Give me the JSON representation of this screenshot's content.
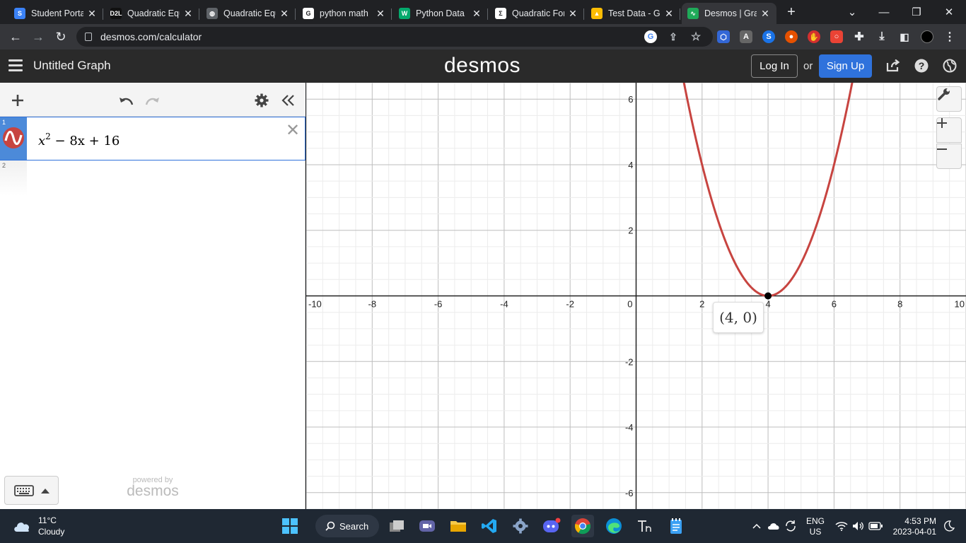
{
  "browser": {
    "tabs": [
      {
        "title": "Student Porta",
        "favicon": "student-portal-icon",
        "color": "#3b82f6",
        "glyph": "S"
      },
      {
        "title": "Quadratic Equ",
        "favicon": "d2l-icon",
        "color": "#111111",
        "glyph": "D2L"
      },
      {
        "title": "Quadratic Equ",
        "favicon": "globe-icon",
        "color": "#5f6368",
        "glyph": "◍"
      },
      {
        "title": "python math",
        "favicon": "google-icon",
        "color": "#ffffff",
        "glyph": "G"
      },
      {
        "title": "Python Data",
        "favicon": "w3-icon",
        "color": "#04aa6d",
        "glyph": "W"
      },
      {
        "title": "Quadratic For",
        "favicon": "sigma-icon",
        "color": "#ffffff",
        "glyph": "Σ"
      },
      {
        "title": "Test Data - G",
        "favicon": "drive-icon",
        "color": "#fbbc04",
        "glyph": "▲"
      },
      {
        "title": "Desmos | Grap",
        "favicon": "desmos-icon",
        "color": "#1faa59",
        "glyph": "∿"
      }
    ],
    "new_tab": "+",
    "url": "desmos.com/calculator"
  },
  "desmos": {
    "graph_title": "Untitled Graph",
    "brand": "desmos",
    "login_label": "Log In",
    "or_label": "or",
    "signup_label": "Sign Up",
    "expressions": [
      {
        "index": "1",
        "base": "x",
        "exp": "2",
        "rest": " − 8x + 16",
        "color": "#c74440"
      },
      {
        "index": "2"
      }
    ],
    "powered_by": "powered by",
    "powered_brand": "desmos",
    "point_label": "(4, 0)"
  },
  "chart_data": {
    "type": "line",
    "title": "",
    "xlabel": "",
    "ylabel": "",
    "xlim": [
      -10,
      10
    ],
    "ylim": [
      -6.5,
      6.5
    ],
    "x_ticks": [
      "-10",
      "-8",
      "-6",
      "-4",
      "-2",
      "0",
      "2",
      "4",
      "6",
      "8",
      "10"
    ],
    "y_ticks": [
      "6",
      "4",
      "2",
      "-2",
      "-4",
      "-6"
    ],
    "grid": true,
    "series": [
      {
        "expression": "x^2 - 8x + 16",
        "color": "#c74440",
        "x": [
          1.4,
          2,
          2.5,
          3,
          3.5,
          4,
          4.5,
          5,
          5.5,
          6,
          6.6
        ],
        "y": [
          6.76,
          4,
          2.25,
          1,
          0.25,
          0,
          0.25,
          1,
          2.25,
          4,
          6.76
        ]
      }
    ],
    "points": [
      {
        "x": 4,
        "y": 0,
        "label": "(4, 0)"
      }
    ]
  },
  "taskbar": {
    "temperature": "11°C",
    "condition": "Cloudy",
    "search_label": "Search",
    "lang_top": "ENG",
    "lang_bottom": "US",
    "time": "4:53 PM",
    "date": "2023-04-01"
  }
}
